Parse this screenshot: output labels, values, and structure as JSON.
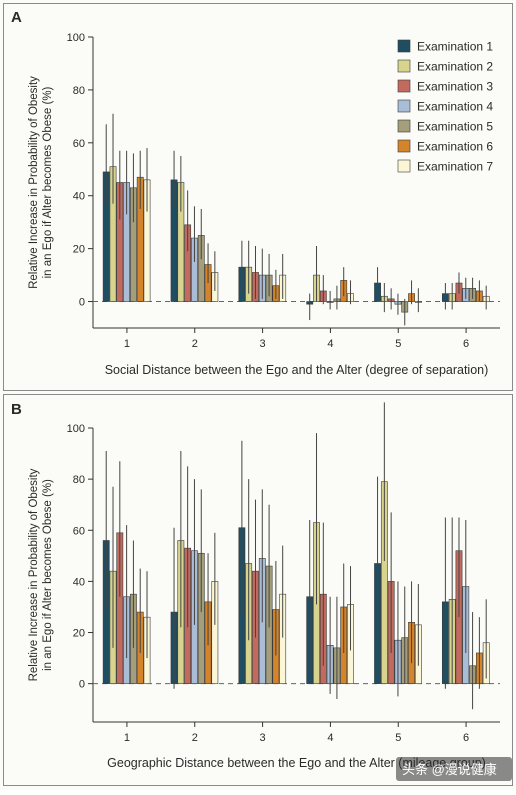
{
  "watermark": "头条 @漫说健康",
  "colors": {
    "examinations": [
      "#1f4e63",
      "#d8d48e",
      "#c26a5e",
      "#a9bdd6",
      "#a49e7a",
      "#d4842a",
      "#fbf7d6"
    ],
    "dashed_zero": "#666666",
    "error_bar": "#444444"
  },
  "chart_data": [
    {
      "panel": "A",
      "type": "bar",
      "ylabel": [
        "Relative Increase in Probability of Obesity",
        "in an Ego if Alter becomes Obese (%)"
      ],
      "xlabel": "Social Distance between the Ego and the Alter (degree of separation)",
      "ylim": [
        -10,
        100
      ],
      "yticks": [
        0,
        20,
        40,
        60,
        80,
        100
      ],
      "categories": [
        "1",
        "2",
        "3",
        "4",
        "5",
        "6"
      ],
      "legend_position": "top-right",
      "series": [
        {
          "name": "Examination 1",
          "values": [
            49,
            46,
            13,
            -1,
            7,
            3
          ],
          "err_low": [
            37,
            36,
            3,
            -7,
            1,
            -3
          ],
          "err_high": [
            67,
            57,
            23,
            3,
            13,
            7
          ]
        },
        {
          "name": "Examination 2",
          "values": [
            51,
            45,
            13,
            10,
            2,
            3
          ],
          "err_low": [
            37,
            34,
            3,
            0,
            -4,
            -3
          ],
          "err_high": [
            71,
            55,
            23,
            21,
            7,
            7
          ]
        },
        {
          "name": "Examination 3",
          "values": [
            45,
            29,
            11,
            4,
            1,
            7
          ],
          "err_low": [
            31,
            19,
            1,
            -1,
            -3,
            3
          ],
          "err_high": [
            57,
            42,
            21,
            10,
            5,
            11
          ]
        },
        {
          "name": "Examination 4",
          "values": [
            45,
            24,
            10,
            0,
            -1,
            5
          ],
          "err_low": [
            33,
            15,
            1,
            -3,
            -5,
            1
          ],
          "err_high": [
            57,
            36,
            20,
            4,
            3,
            9
          ]
        },
        {
          "name": "Examination 5",
          "values": [
            43,
            25,
            10,
            1,
            -4,
            5
          ],
          "err_low": [
            30,
            16,
            2,
            -3,
            -9,
            1
          ],
          "err_high": [
            56,
            35,
            18,
            6,
            1,
            9
          ]
        },
        {
          "name": "Examination 6",
          "values": [
            47,
            14,
            6,
            8,
            3,
            4
          ],
          "err_low": [
            35,
            7,
            1,
            2,
            -1,
            0
          ],
          "err_high": [
            57,
            22,
            12,
            13,
            8,
            8
          ]
        },
        {
          "name": "Examination 7",
          "values": [
            46,
            11,
            10,
            3,
            0,
            2
          ],
          "err_low": [
            34,
            4,
            1,
            -1,
            -4,
            -3
          ],
          "err_high": [
            58,
            19,
            18,
            8,
            5,
            6
          ]
        }
      ]
    },
    {
      "panel": "B",
      "type": "bar",
      "ylabel": [
        "Relative Increase in Probability of Obesity",
        "in an Ego if Alter becomes Obese (%)"
      ],
      "xlabel": "Geographic Distance between the Ego and the Alter (mileage group)",
      "ylim": [
        -15,
        100
      ],
      "yticks": [
        0,
        20,
        40,
        60,
        80,
        100
      ],
      "categories": [
        "1",
        "2",
        "3",
        "4",
        "5",
        "6"
      ],
      "series": [
        {
          "name": "Examination 1",
          "values": [
            56,
            28,
            61,
            34,
            47,
            32
          ],
          "err_low": [
            29,
            -2,
            27,
            5,
            14,
            -2
          ],
          "err_high": [
            91,
            61,
            95,
            64,
            81,
            65
          ]
        },
        {
          "name": "Examination 2",
          "values": [
            44,
            56,
            47,
            63,
            79,
            33
          ],
          "err_low": [
            14,
            22,
            17,
            31,
            48,
            0
          ],
          "err_high": [
            77,
            91,
            80,
            98,
            110,
            65
          ]
        },
        {
          "name": "Examination 3",
          "values": [
            59,
            53,
            44,
            35,
            40,
            52
          ],
          "err_low": [
            34,
            22,
            18,
            7,
            12,
            26
          ],
          "err_high": [
            87,
            85,
            72,
            63,
            67,
            65
          ]
        },
        {
          "name": "Examination 4",
          "values": [
            34,
            52,
            49,
            15,
            17,
            38
          ],
          "err_low": [
            10,
            23,
            24,
            -4,
            -5,
            12
          ],
          "err_high": [
            62,
            80,
            76,
            34,
            40,
            64
          ]
        },
        {
          "name": "Examination 5",
          "values": [
            35,
            51,
            46,
            14,
            18,
            7
          ],
          "err_low": [
            14,
            28,
            22,
            -6,
            0,
            -10
          ],
          "err_high": [
            56,
            76,
            70,
            34,
            38,
            28
          ]
        },
        {
          "name": "Examination 6",
          "values": [
            28,
            32,
            29,
            30,
            24,
            12
          ],
          "err_low": [
            12,
            15,
            11,
            12,
            8,
            -2
          ],
          "err_high": [
            45,
            51,
            48,
            47,
            40,
            26
          ]
        },
        {
          "name": "Examination 7",
          "values": [
            26,
            40,
            35,
            31,
            23,
            16
          ],
          "err_low": [
            10,
            23,
            18,
            13,
            7,
            2
          ],
          "err_high": [
            44,
            59,
            54,
            46,
            39,
            33
          ]
        }
      ]
    }
  ]
}
